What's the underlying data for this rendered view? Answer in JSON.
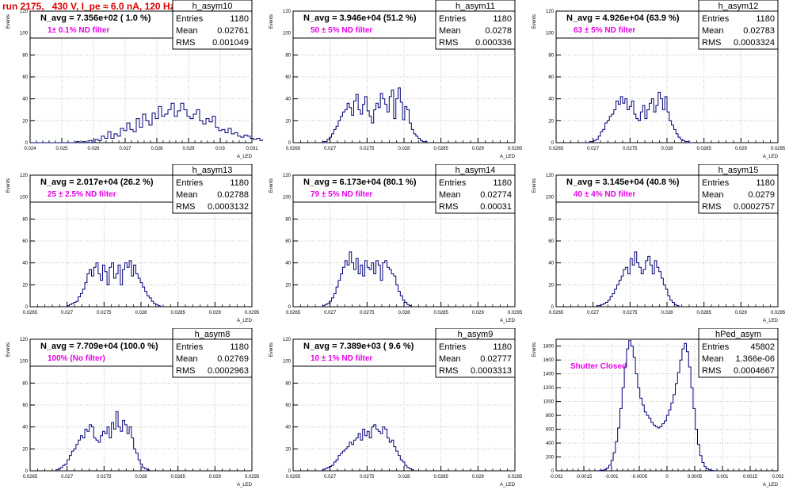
{
  "header": {
    "title": "run 2175,   430 V, I_pe ≈ 6.0 nA, 120 Hz"
  },
  "colors": {
    "title": "#e00000",
    "annotation": "#e800e8",
    "histogram": "#00007a",
    "grid": "#b0b0b0"
  },
  "common": {
    "ylabel": "Events",
    "xlabel": "A_LED",
    "stat_labels": [
      "Entries",
      "Mean",
      "RMS"
    ]
  },
  "chart_data": [
    {
      "type": "histogram",
      "name": "h_asym10",
      "navg": "N_avg = 7.356e+02 ( 1.0 %)",
      "annotation": "1± 0.1% ND filter",
      "stats": {
        "entries": "1180",
        "mean": "0.02761",
        "rms": "0.001049"
      },
      "xlim": [
        0.024,
        0.031
      ],
      "ylim": [
        0,
        120
      ],
      "xticks": [
        "0.024",
        "0.025",
        "0.026",
        "0.027",
        "0.028",
        "0.029",
        "0.03",
        "0.031"
      ],
      "yticks": [
        "0",
        "20",
        "40",
        "60",
        "80",
        "100",
        "120"
      ],
      "bins_from": 0.02405,
      "bin_width": 0.0001,
      "values": [
        0,
        0,
        0,
        0,
        0,
        0,
        0,
        0,
        0,
        0,
        0,
        0,
        0,
        0,
        1,
        0,
        1,
        0,
        2,
        0,
        3,
        2,
        6,
        4,
        10,
        4,
        8,
        6,
        13,
        11,
        18,
        12,
        10,
        22,
        14,
        26,
        20,
        16,
        27,
        22,
        33,
        24,
        26,
        30,
        36,
        24,
        29,
        36,
        30,
        24,
        22,
        26,
        30,
        20,
        17,
        22,
        19,
        24,
        14,
        11,
        12,
        9,
        13,
        8,
        9,
        6,
        5,
        7,
        6,
        4,
        3,
        4,
        2,
        3,
        1,
        2,
        1,
        1,
        0,
        1,
        0,
        0,
        0,
        0,
        0,
        0,
        0,
        0,
        0,
        0,
        0,
        0,
        0,
        0,
        0,
        0,
        0,
        0,
        0,
        0
      ]
    },
    {
      "type": "histogram",
      "name": "h_asym11",
      "navg": "N_avg = 3.946e+04 (51.2 %)",
      "annotation": "50 ± 5% ND filter",
      "stats": {
        "entries": "1180",
        "mean": "0.0278",
        "rms": "0.000336"
      },
      "xlim": [
        0.0265,
        0.0295
      ],
      "ylim": [
        0,
        120
      ],
      "xticks": [
        "0.0265",
        "0.027",
        "0.0275",
        "0.028",
        "0.0285",
        "0.029",
        "0.0295"
      ],
      "yticks": [
        "0",
        "20",
        "40",
        "60",
        "80",
        "100",
        "120"
      ],
      "bins_from": 0.0269,
      "bin_width": 3e-05,
      "values": [
        1,
        1,
        3,
        5,
        8,
        12,
        15,
        20,
        24,
        28,
        30,
        36,
        32,
        25,
        38,
        44,
        30,
        26,
        35,
        42,
        29,
        24,
        18,
        30,
        36,
        32,
        45,
        40,
        35,
        28,
        42,
        48,
        22,
        40,
        50,
        37,
        21,
        33,
        30,
        18,
        12,
        8,
        6,
        4,
        2,
        1,
        1
      ]
    },
    {
      "type": "histogram",
      "name": "h_asym12",
      "navg": "N_avg = 4.926e+04 (63.9 %)",
      "annotation": "63 ± 5% ND filter",
      "stats": {
        "entries": "1180",
        "mean": "0.02783",
        "rms": "0.0003324"
      },
      "xlim": [
        0.0265,
        0.0295
      ],
      "ylim": [
        0,
        120
      ],
      "xticks": [
        "0.0265",
        "0.027",
        "0.0275",
        "0.028",
        "0.0285",
        "0.029",
        "0.0295"
      ],
      "yticks": [
        "0",
        "20",
        "40",
        "60",
        "80",
        "100",
        "120"
      ],
      "bins_from": 0.02695,
      "bin_width": 3e-05,
      "values": [
        1,
        1,
        2,
        3,
        6,
        10,
        12,
        18,
        20,
        24,
        26,
        30,
        38,
        35,
        42,
        36,
        40,
        30,
        33,
        38,
        26,
        22,
        20,
        28,
        34,
        22,
        30,
        36,
        40,
        28,
        34,
        46,
        40,
        30,
        42,
        28,
        20,
        16,
        12,
        8,
        5,
        3,
        2,
        1,
        1
      ]
    },
    {
      "type": "histogram",
      "name": "h_asym13",
      "navg": "N_avg = 2.017e+04 (26.2 %)",
      "annotation": "25 ± 2.5% ND filter",
      "stats": {
        "entries": "1180",
        "mean": "0.02788",
        "rms": "0.0003132"
      },
      "xlim": [
        0.0265,
        0.0295
      ],
      "ylim": [
        0,
        120
      ],
      "xticks": [
        "0.0265",
        "0.027",
        "0.0275",
        "0.028",
        "0.0285",
        "0.029",
        "0.0295"
      ],
      "yticks": [
        "0",
        "20",
        "40",
        "60",
        "80",
        "100",
        "120"
      ],
      "bins_from": 0.027,
      "bin_width": 3e-05,
      "values": [
        1,
        2,
        3,
        4,
        5,
        9,
        12,
        16,
        22,
        30,
        34,
        28,
        36,
        40,
        30,
        24,
        38,
        32,
        20,
        36,
        40,
        26,
        30,
        38,
        20,
        34,
        40,
        36,
        42,
        28,
        38,
        30,
        26,
        22,
        18,
        14,
        10,
        8,
        5,
        3,
        2,
        1
      ]
    },
    {
      "type": "histogram",
      "name": "h_asym14",
      "navg": "N_avg = 6.173e+04 (80.1 %)",
      "annotation": "79 ± 5% ND filter",
      "stats": {
        "entries": "1180",
        "mean": "0.02774",
        "rms": "0.00031"
      },
      "xlim": [
        0.0265,
        0.0295
      ],
      "ylim": [
        0,
        120
      ],
      "xticks": [
        "0.0265",
        "0.027",
        "0.0275",
        "0.028",
        "0.0285",
        "0.029",
        "0.0295"
      ],
      "yticks": [
        "0",
        "20",
        "40",
        "60",
        "80",
        "100",
        "120"
      ],
      "bins_from": 0.0269,
      "bin_width": 3e-05,
      "values": [
        1,
        2,
        3,
        5,
        8,
        12,
        18,
        24,
        30,
        36,
        42,
        38,
        50,
        40,
        34,
        44,
        30,
        38,
        28,
        42,
        36,
        34,
        40,
        30,
        42,
        38,
        24,
        40,
        42,
        36,
        34,
        30,
        28,
        20,
        14,
        10,
        6,
        4,
        2,
        1
      ]
    },
    {
      "type": "histogram",
      "name": "h_asym15",
      "navg": "N_avg = 3.145e+04 (40.8 %)",
      "annotation": "40 ± 4% ND filter",
      "stats": {
        "entries": "1180",
        "mean": "0.0279",
        "rms": "0.0002757"
      },
      "xlim": [
        0.0265,
        0.0295
      ],
      "ylim": [
        0,
        120
      ],
      "xticks": [
        "0.0265",
        "0.027",
        "0.0275",
        "0.028",
        "0.0285",
        "0.029",
        "0.0295"
      ],
      "yticks": [
        "0",
        "20",
        "40",
        "60",
        "80",
        "100",
        "120"
      ],
      "bins_from": 0.02705,
      "bin_width": 3e-05,
      "values": [
        1,
        1,
        2,
        3,
        4,
        6,
        9,
        12,
        16,
        20,
        24,
        28,
        34,
        36,
        30,
        44,
        38,
        50,
        40,
        36,
        30,
        34,
        42,
        46,
        38,
        30,
        42,
        36,
        32,
        26,
        20,
        16,
        10,
        6,
        4,
        2,
        1
      ]
    },
    {
      "type": "histogram",
      "name": "h_asym8",
      "navg": "N_avg = 7.709e+04 (100.0 %)",
      "annotation": "100% (No filter)",
      "stats": {
        "entries": "1180",
        "mean": "0.02769",
        "rms": "0.0002963"
      },
      "xlim": [
        0.0265,
        0.0295
      ],
      "ylim": [
        0,
        120
      ],
      "xticks": [
        "0.0265",
        "0.027",
        "0.0275",
        "0.028",
        "0.0285",
        "0.029",
        "0.0295"
      ],
      "yticks": [
        "0",
        "20",
        "40",
        "60",
        "80",
        "100",
        "120"
      ],
      "bins_from": 0.02685,
      "bin_width": 3e-05,
      "values": [
        1,
        2,
        3,
        5,
        6,
        10,
        14,
        18,
        20,
        24,
        28,
        32,
        30,
        38,
        36,
        42,
        40,
        30,
        28,
        26,
        32,
        36,
        34,
        40,
        30,
        44,
        38,
        54,
        40,
        36,
        46,
        42,
        34,
        40,
        30,
        20,
        16,
        10,
        6,
        3,
        2,
        1
      ]
    },
    {
      "type": "histogram",
      "name": "h_asym9",
      "navg": "N_avg = 7.389e+03 ( 9.6 %)",
      "annotation": "10 ± 1% ND filter",
      "stats": {
        "entries": "1180",
        "mean": "0.02777",
        "rms": "0.0003313"
      },
      "xlim": [
        0.0265,
        0.0295
      ],
      "ylim": [
        0,
        120
      ],
      "xticks": [
        "0.0265",
        "0.027",
        "0.0275",
        "0.028",
        "0.0285",
        "0.029",
        "0.0295"
      ],
      "yticks": [
        "0",
        "20",
        "40",
        "60",
        "80",
        "100",
        "120"
      ],
      "bins_from": 0.0269,
      "bin_width": 3e-05,
      "values": [
        1,
        2,
        3,
        4,
        5,
        8,
        10,
        14,
        16,
        18,
        20,
        22,
        26,
        24,
        28,
        30,
        34,
        28,
        38,
        32,
        36,
        30,
        40,
        42,
        38,
        36,
        34,
        40,
        38,
        30,
        26,
        28,
        22,
        18,
        14,
        10,
        8,
        5,
        3,
        2,
        1
      ]
    },
    {
      "type": "histogram",
      "name": "hPed_asym",
      "navg": "",
      "annotation": "Shutter Closed",
      "stats": {
        "entries": "45802",
        "mean": "1.366e-06",
        "rms": "0.0004667"
      },
      "xlim": [
        -0.002,
        0.002
      ],
      "ylim": [
        0,
        1900
      ],
      "xticks": [
        "-0.002",
        "-0.0015",
        "-0.001",
        "-0.0005",
        "0",
        "0.0005",
        "0.001",
        "0.0015",
        "0.002"
      ],
      "yticks": [
        "0",
        "200",
        "400",
        "600",
        "800",
        "1000",
        "1200",
        "1400",
        "1600",
        "1800"
      ],
      "bins_from": -0.00125,
      "bin_width": 4e-05,
      "values": [
        2,
        5,
        10,
        20,
        40,
        80,
        150,
        260,
        420,
        620,
        900,
        1200,
        1500,
        1760,
        1880,
        1800,
        1640,
        1400,
        1200,
        1050,
        950,
        850,
        800,
        760,
        700,
        660,
        640,
        620,
        640,
        680,
        720,
        800,
        880,
        980,
        1100,
        1260,
        1420,
        1600,
        1760,
        1840,
        1720,
        1500,
        1200,
        900,
        600,
        380,
        220,
        120,
        60,
        30,
        14,
        6,
        2
      ]
    }
  ]
}
